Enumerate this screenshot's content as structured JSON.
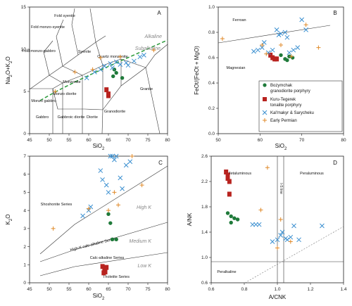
{
  "colors": {
    "bozymchak": "#1f7a3a",
    "kuru": "#b8231f",
    "kalmakyr": "#3a8fd0",
    "permian": "#e08a2a",
    "alkaline_line": "#2a9a3a"
  },
  "chart_data": [
    {
      "panel": "A",
      "type": "scatter",
      "xlabel": "SiO2",
      "ylabel": "Na2O+K2O",
      "xlim": [
        45,
        80
      ],
      "ylim": [
        0,
        15
      ],
      "xticks": [
        "45",
        "50",
        "55",
        "60",
        "65",
        "70",
        "75",
        "80"
      ],
      "yticks": [
        "0",
        "5",
        "10",
        "15"
      ],
      "fields": [
        "Fold syenite",
        "Fold monzo-syenite",
        "Fold monzo-gabbro",
        "Syenite",
        "Monzonite",
        "Quartz monzonite",
        "Monzo diorite",
        "Monzo gabbro",
        "Gabbro",
        "Gabbroic diorite",
        "Diorite",
        "Granodiorite",
        "Granite"
      ],
      "divider_labels": [
        "Alkaline",
        "Subalkaline"
      ],
      "series": [
        {
          "name": "Bozymchak granodiorite porphyry",
          "x": [
            66.5,
            67.0,
            66.2,
            68.5
          ],
          "y": [
            7.6,
            7.2,
            6.8,
            6.6
          ]
        },
        {
          "name": "Kuru-Tegerek tonalite porphyry",
          "x": [
            64.5,
            65.0,
            65.0
          ],
          "y": [
            5.2,
            4.7,
            4.5
          ]
        },
        {
          "name": "Kal'makyr & Sarycheku",
          "x": [
            59.5,
            61.5,
            63.0,
            64.0,
            65.5,
            66.0,
            67.0,
            68.0,
            69.5,
            70.0,
            71.5,
            73.0,
            74.0
          ],
          "y": [
            6.6,
            7.3,
            7.6,
            8.0,
            8.3,
            7.8,
            8.5,
            8.2,
            8.4,
            8.1,
            8.6,
            9.1,
            9.3
          ]
        },
        {
          "name": "Early Permian",
          "x": [
            51.5,
            56.5,
            61.0,
            63.0,
            68.0,
            76.5
          ],
          "y": [
            5.0,
            7.3,
            7.6,
            9.0,
            9.1,
            9.9
          ]
        }
      ]
    },
    {
      "panel": "B",
      "type": "scatter",
      "xlabel": "SiO2",
      "ylabel": "FeOt/(FeOt + MgO)",
      "xlim": [
        50,
        80
      ],
      "ylim": [
        0.0,
        1.0
      ],
      "xticks": [
        "50",
        "60",
        "70",
        "80"
      ],
      "yticks": [
        "0.0",
        "0.2",
        "0.4",
        "0.6",
        "0.8",
        "1.0"
      ],
      "fields": [
        "Ferroan",
        "Magnesian"
      ],
      "series": [
        {
          "name": "Bozymchak granodiorite porphyry",
          "x": [
            65.0,
            66.0,
            67.0,
            67.8,
            66.5
          ],
          "y": [
            0.62,
            0.59,
            0.61,
            0.6,
            0.58
          ]
        },
        {
          "name": "Kuru-Tegerek tonalite porphyry",
          "x": [
            62.5,
            63.0,
            63.5,
            64.0
          ],
          "y": [
            0.62,
            0.6,
            0.59,
            0.59
          ]
        },
        {
          "name": "Kal'makyr & Sarycheku",
          "x": [
            58.5,
            59.5,
            60.5,
            61.0,
            62.0,
            63.0,
            64.0,
            64.5,
            65.0,
            66.0,
            66.5,
            67.0,
            68.0,
            69.0,
            70.0,
            71.0
          ],
          "y": [
            0.65,
            0.66,
            0.68,
            0.72,
            0.64,
            0.66,
            0.82,
            0.78,
            0.79,
            0.8,
            0.76,
            0.64,
            0.66,
            0.68,
            0.9,
            0.82
          ]
        },
        {
          "name": "Early Permian",
          "x": [
            51.0,
            60.5,
            61.5,
            65.0,
            67.5,
            71.0,
            74.0
          ],
          "y": [
            0.75,
            0.7,
            0.63,
            0.7,
            0.61,
            0.86,
            0.68
          ]
        }
      ],
      "legend": [
        "Bozymchak granodiorite porphyry",
        "Kuru-Tegerek tonalite porphyry",
        "Kal'makyr & Sarycheku",
        "Early Permian"
      ]
    },
    {
      "panel": "C",
      "type": "scatter",
      "xlabel": "SiO2",
      "ylabel": "K2O",
      "xlim": [
        45,
        80
      ],
      "ylim": [
        0,
        7
      ],
      "xticks": [
        "45",
        "50",
        "55",
        "60",
        "65",
        "70",
        "75",
        "80"
      ],
      "yticks": [
        "0",
        "1",
        "2",
        "3",
        "4",
        "5",
        "6",
        "7"
      ],
      "fields": [
        "Shoshonite Series",
        "High K",
        "High-K calc-alkaline Series",
        "Medium K",
        "Calc-alkaline Series",
        "Low K",
        "Tholeiite Series"
      ],
      "series": [
        {
          "name": "Bozymchak granodiorite porphyry",
          "x": [
            65.0,
            65.5,
            66.0,
            67.0
          ],
          "y": [
            3.8,
            3.3,
            2.4,
            2.4
          ]
        },
        {
          "name": "Kuru-Tegerek tonalite porphyry",
          "x": [
            63.5,
            64.0,
            64.5,
            63.8,
            64.2
          ],
          "y": [
            0.9,
            0.75,
            0.85,
            0.55,
            0.6
          ]
        },
        {
          "name": "Kal'makyr & Sarycheku",
          "x": [
            58.5,
            60.0,
            60.5,
            63.0,
            63.5,
            64.5,
            65.0,
            65.5,
            66.0,
            66.5,
            67.0,
            68.0,
            68.5,
            69.5,
            70.5
          ],
          "y": [
            3.7,
            4.0,
            4.2,
            6.2,
            5.7,
            5.4,
            5.0,
            7.0,
            7.0,
            6.8,
            7.0,
            5.8,
            5.2,
            6.5,
            6.7
          ]
        },
        {
          "name": "Early Permian",
          "x": [
            51.0,
            60.0,
            65.0,
            66.5,
            67.5,
            71.0,
            73.5
          ],
          "y": [
            3.0,
            4.1,
            4.0,
            5.0,
            4.3,
            7.0,
            5.4
          ]
        }
      ]
    },
    {
      "panel": "D",
      "type": "scatter",
      "xlabel": "A/CNK",
      "ylabel": "A/NK",
      "xlim": [
        0.6,
        1.4
      ],
      "ylim": [
        0.6,
        2.6
      ],
      "xticks": [
        "0.6",
        "0.8",
        "1.0",
        "1.2",
        "1.4"
      ],
      "yticks": [
        "0.6",
        "1.0",
        "1.4",
        "1.8",
        "2.2",
        "2.6"
      ],
      "fields": [
        "Metaluminous",
        "Peraluminous",
        "Peralkaline",
        "I-S line"
      ],
      "series": [
        {
          "name": "Bozymchak granodiorite porphyry",
          "x": [
            0.7,
            0.72,
            0.74,
            0.76,
            0.72
          ],
          "y": [
            1.7,
            1.65,
            1.62,
            1.6,
            1.55
          ]
        },
        {
          "name": "Kuru-Tegerek tonalite porphyry",
          "x": [
            0.69,
            0.7,
            0.7,
            0.71,
            0.71
          ],
          "y": [
            2.35,
            2.3,
            2.25,
            2.2,
            2.0
          ]
        },
        {
          "name": "Kal'makyr & Sarycheku",
          "x": [
            0.85,
            0.87,
            0.89,
            0.97,
            1.0,
            1.02,
            1.03,
            1.05,
            1.06,
            1.08,
            1.1,
            1.13,
            1.27
          ],
          "y": [
            1.52,
            1.52,
            1.52,
            1.25,
            1.28,
            1.35,
            1.4,
            1.3,
            1.28,
            1.32,
            1.5,
            1.28,
            1.5
          ]
        },
        {
          "name": "Early Permian",
          "x": [
            0.9,
            0.94,
            1.0,
            1.02,
            1.08
          ],
          "y": [
            1.75,
            2.42,
            1.15,
            1.6,
            1.25
          ]
        }
      ]
    }
  ]
}
